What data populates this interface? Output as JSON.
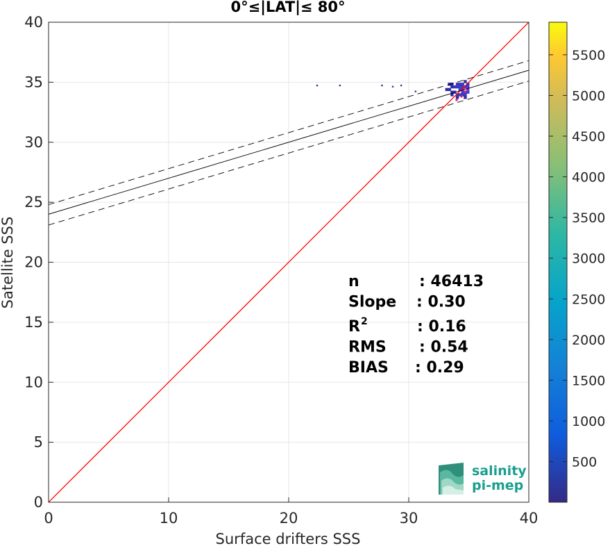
{
  "chart_data": {
    "type": "scatter",
    "title": "0°≤|LAT|≤ 80°",
    "xlabel": "Surface drifters SSS",
    "ylabel": "Satellite SSS",
    "xlim": [
      0,
      40
    ],
    "ylim": [
      0,
      40
    ],
    "xticks": [
      "0",
      "10",
      "20",
      "30",
      "40"
    ],
    "yticks": [
      "0",
      "5",
      "10",
      "15",
      "20",
      "25",
      "30",
      "35",
      "40"
    ],
    "grid": true,
    "colorbar": {
      "range": [
        1,
        5900
      ],
      "ticks": [
        "500",
        "1000",
        "1500",
        "2000",
        "2500",
        "3000",
        "3500",
        "4000",
        "4500",
        "5000",
        "5500"
      ],
      "colormap": "parula"
    },
    "density_cluster": {
      "x_range": [
        31.5,
        35.0
      ],
      "y_range": [
        33.2,
        35.0
      ],
      "peak_x": 34.5,
      "peak_y": 34.3
    },
    "sparse_points": [
      [
        22.3,
        34.8
      ],
      [
        24.2,
        34.8
      ],
      [
        27.7,
        34.8
      ],
      [
        28.6,
        34.7
      ],
      [
        29.3,
        34.8
      ],
      [
        30.5,
        34.3
      ]
    ],
    "lines": [
      {
        "name": "1:1",
        "slope": 1.0,
        "intercept": 0.0,
        "color": "#ff0000",
        "style": "solid"
      },
      {
        "name": "fit",
        "slope": 0.3,
        "intercept": 24.0,
        "color": "#000000",
        "style": "solid"
      },
      {
        "name": "fit-upper",
        "slope": 0.3,
        "intercept": 24.8,
        "color": "#000000",
        "style": "dashed"
      },
      {
        "name": "fit-lower",
        "slope": 0.3,
        "intercept": 23.1,
        "color": "#000000",
        "style": "dashed"
      }
    ],
    "stats": [
      {
        "label": "n",
        "value": ": 46413"
      },
      {
        "label": "Slope",
        "value": ": 0.30"
      },
      {
        "label": "R",
        "sup": "2",
        "value": ": 0.16"
      },
      {
        "label": "RMS",
        "value": ": 0.54"
      },
      {
        "label": "BIAS",
        "value": ": 0.29"
      }
    ]
  },
  "logo": {
    "line1": "salinity",
    "line2": "pi-mep"
  }
}
